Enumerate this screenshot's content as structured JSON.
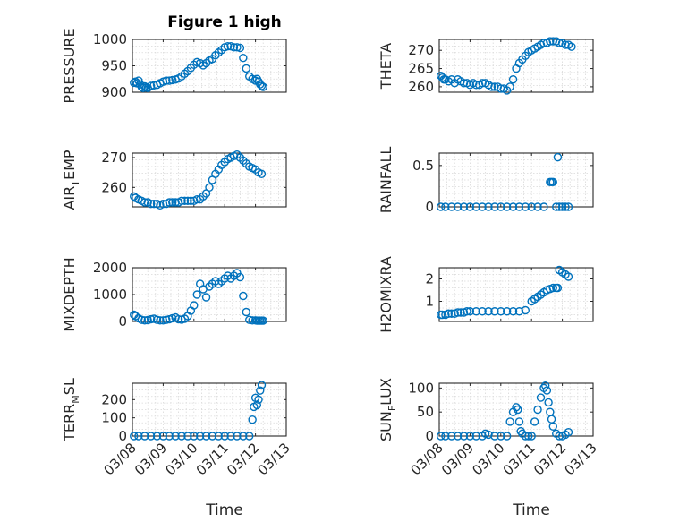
{
  "figure": {
    "title": "Figure 1 high",
    "marker_color": "#0072BD"
  },
  "chart_data": [
    {
      "type": "scatter",
      "title": "Figure 1 high",
      "ylabel": "PRESSURE",
      "ylim": [
        900,
        1000
      ],
      "yticks": [
        900,
        950,
        1000
      ],
      "xlim": [
        0,
        5
      ],
      "xticklabels": [
        "03/08",
        "03/09",
        "03/10",
        "03/11",
        "03/12",
        "03/13"
      ],
      "show_xticklabels": false,
      "grid": true,
      "x": [
        0.05,
        0.1,
        0.15,
        0.2,
        0.25,
        0.3,
        0.35,
        0.4,
        0.45,
        0.5,
        0.6,
        0.7,
        0.8,
        0.9,
        1.0,
        1.1,
        1.2,
        1.3,
        1.4,
        1.5,
        1.6,
        1.7,
        1.8,
        1.9,
        2.0,
        2.1,
        2.2,
        2.3,
        2.4,
        2.5,
        2.6,
        2.7,
        2.8,
        2.9,
        3.0,
        3.1,
        3.2,
        3.3,
        3.4,
        3.5,
        3.6,
        3.7,
        3.8,
        3.9,
        4.0,
        4.05,
        4.1,
        4.15,
        4.2,
        4.25
      ],
      "y": [
        918,
        920,
        917,
        922,
        915,
        910,
        908,
        911,
        909,
        908,
        912,
        913,
        914,
        917,
        920,
        922,
        922,
        923,
        924,
        926,
        930,
        935,
        940,
        946,
        952,
        957,
        955,
        951,
        955,
        960,
        963,
        970,
        975,
        980,
        985,
        987,
        987,
        985,
        985,
        984,
        965,
        945,
        930,
        925,
        922,
        925,
        920,
        915,
        912,
        910
      ]
    },
    {
      "type": "scatter",
      "ylabel": "THETA",
      "ylim": [
        258.5,
        273
      ],
      "yticks": [
        260,
        265,
        270
      ],
      "xlim": [
        0,
        5
      ],
      "xticklabels": [
        "03/08",
        "03/09",
        "03/10",
        "03/11",
        "03/12",
        "03/13"
      ],
      "show_xticklabels": false,
      "grid": true,
      "x": [
        0.05,
        0.1,
        0.15,
        0.2,
        0.3,
        0.4,
        0.5,
        0.6,
        0.7,
        0.8,
        0.9,
        1.0,
        1.1,
        1.2,
        1.3,
        1.4,
        1.5,
        1.6,
        1.7,
        1.8,
        1.9,
        2.0,
        2.1,
        2.2,
        2.3,
        2.4,
        2.5,
        2.6,
        2.7,
        2.8,
        2.9,
        3.0,
        3.1,
        3.2,
        3.3,
        3.4,
        3.5,
        3.6,
        3.7,
        3.8,
        3.9,
        4.0,
        4.1,
        4.2,
        4.3
      ],
      "y": [
        263,
        262.5,
        262,
        262,
        261.5,
        262,
        261,
        262,
        261.5,
        261,
        261,
        260.5,
        261,
        260.5,
        260.5,
        261,
        261,
        260.5,
        260,
        260,
        260,
        259.5,
        259.5,
        259,
        260,
        262,
        265,
        266.5,
        267.5,
        268.5,
        269.5,
        270,
        270.5,
        271,
        271.5,
        272,
        272,
        272.5,
        272.5,
        272.5,
        272,
        272,
        271.5,
        271.5,
        271
      ]
    },
    {
      "type": "scatter",
      "ylabel": "AIR_TEMP",
      "ylim": [
        253.5,
        271.5
      ],
      "yticks": [
        260,
        270
      ],
      "xlim": [
        0,
        5
      ],
      "xticklabels": [
        "03/08",
        "03/09",
        "03/10",
        "03/11",
        "03/12",
        "03/13"
      ],
      "show_xticklabels": false,
      "grid": true,
      "x": [
        0.05,
        0.1,
        0.2,
        0.3,
        0.4,
        0.5,
        0.6,
        0.7,
        0.8,
        0.9,
        1.0,
        1.1,
        1.2,
        1.3,
        1.4,
        1.5,
        1.6,
        1.7,
        1.8,
        1.9,
        2.0,
        2.1,
        2.2,
        2.3,
        2.4,
        2.5,
        2.6,
        2.7,
        2.8,
        2.9,
        3.0,
        3.1,
        3.2,
        3.3,
        3.4,
        3.5,
        3.6,
        3.7,
        3.8,
        3.9,
        4.0,
        4.1,
        4.2
      ],
      "y": [
        257,
        256.5,
        256,
        255.5,
        255,
        255,
        254.5,
        254.5,
        254.5,
        254,
        254.5,
        254.5,
        255,
        255,
        255,
        255,
        255.5,
        255.5,
        255.5,
        255.5,
        255.5,
        256,
        256,
        257,
        258,
        260,
        262.5,
        264.5,
        266,
        267.5,
        268.5,
        269.5,
        270,
        270.5,
        271,
        270,
        269,
        268,
        267,
        266.5,
        266,
        265,
        264.5
      ]
    },
    {
      "type": "scatter",
      "ylabel": "RAINFALL",
      "ylim": [
        0,
        0.65
      ],
      "yticks": [
        0,
        0.5
      ],
      "xlim": [
        0,
        5
      ],
      "xticklabels": [
        "03/08",
        "03/09",
        "03/10",
        "03/11",
        "03/12",
        "03/13"
      ],
      "show_xticklabels": false,
      "grid": true,
      "x": [
        0.05,
        0.2,
        0.4,
        0.6,
        0.8,
        1.0,
        1.2,
        1.4,
        1.6,
        1.8,
        2.0,
        2.2,
        2.4,
        2.6,
        2.8,
        3.0,
        3.2,
        3.4,
        3.6,
        3.65,
        3.7,
        3.8,
        3.85,
        3.9,
        4.0,
        4.1,
        4.2
      ],
      "y": [
        0,
        0,
        0,
        0,
        0,
        0,
        0,
        0,
        0,
        0,
        0,
        0,
        0,
        0,
        0,
        0,
        0,
        0,
        0.3,
        0.3,
        0.3,
        0,
        0.6,
        0,
        0,
        0,
        0
      ]
    },
    {
      "type": "scatter",
      "ylabel": "MIXDEPTH",
      "ylim": [
        0,
        2000
      ],
      "yticks": [
        0,
        1000,
        2000
      ],
      "xlim": [
        0,
        5
      ],
      "xticklabels": [
        "03/08",
        "03/09",
        "03/10",
        "03/11",
        "03/12",
        "03/13"
      ],
      "show_xticklabels": false,
      "grid": true,
      "x": [
        0.05,
        0.1,
        0.2,
        0.3,
        0.4,
        0.5,
        0.6,
        0.7,
        0.8,
        0.9,
        1.0,
        1.1,
        1.2,
        1.3,
        1.4,
        1.5,
        1.6,
        1.7,
        1.8,
        1.9,
        2.0,
        2.1,
        2.2,
        2.3,
        2.4,
        2.5,
        2.6,
        2.7,
        2.8,
        2.9,
        3.0,
        3.1,
        3.2,
        3.3,
        3.4,
        3.5,
        3.6,
        3.7,
        3.8,
        3.9,
        4.0,
        4.05,
        4.1,
        4.15,
        4.2,
        4.25
      ],
      "y": [
        250,
        200,
        120,
        60,
        40,
        50,
        80,
        100,
        60,
        40,
        40,
        60,
        80,
        120,
        150,
        80,
        70,
        100,
        200,
        400,
        600,
        1000,
        1400,
        1200,
        900,
        1300,
        1400,
        1500,
        1400,
        1500,
        1600,
        1700,
        1600,
        1700,
        1800,
        1650,
        950,
        350,
        60,
        40,
        40,
        30,
        30,
        30,
        30,
        30
      ]
    },
    {
      "type": "scatter",
      "ylabel": "H2OMIXRA",
      "ylim": [
        0.1,
        2.5
      ],
      "yticks": [
        1,
        2
      ],
      "xlim": [
        0,
        5
      ],
      "xticklabels": [
        "03/08",
        "03/09",
        "03/10",
        "03/11",
        "03/12",
        "03/13"
      ],
      "show_xticklabels": false,
      "grid": true,
      "x": [
        0.05,
        0.1,
        0.2,
        0.3,
        0.4,
        0.5,
        0.6,
        0.7,
        0.8,
        0.9,
        1.0,
        1.2,
        1.4,
        1.6,
        1.8,
        2.0,
        2.2,
        2.4,
        2.6,
        2.8,
        3.0,
        3.1,
        3.2,
        3.3,
        3.4,
        3.5,
        3.6,
        3.7,
        3.8,
        3.85,
        3.9,
        4.0,
        4.1,
        4.2
      ],
      "y": [
        0.4,
        0.4,
        0.4,
        0.45,
        0.45,
        0.45,
        0.5,
        0.5,
        0.5,
        0.55,
        0.55,
        0.55,
        0.55,
        0.55,
        0.55,
        0.55,
        0.55,
        0.55,
        0.55,
        0.6,
        1.0,
        1.1,
        1.2,
        1.3,
        1.4,
        1.5,
        1.55,
        1.6,
        1.6,
        1.6,
        2.4,
        2.3,
        2.2,
        2.1
      ]
    },
    {
      "type": "scatter",
      "ylabel": "TERR_MSL",
      "ylim": [
        0,
        290
      ],
      "yticks": [
        0,
        100,
        200
      ],
      "xlim": [
        0,
        5
      ],
      "xticklabels": [
        "03/08",
        "03/09",
        "03/10",
        "03/11",
        "03/12",
        "03/13"
      ],
      "show_xticklabels": true,
      "grid": true,
      "x": [
        0.05,
        0.2,
        0.4,
        0.6,
        0.8,
        1.0,
        1.2,
        1.4,
        1.6,
        1.8,
        2.0,
        2.2,
        2.4,
        2.6,
        2.8,
        3.0,
        3.2,
        3.4,
        3.6,
        3.8,
        3.9,
        3.95,
        4.0,
        4.05,
        4.1,
        4.15,
        4.2
      ],
      "y": [
        0,
        0,
        0,
        0,
        0,
        0,
        0,
        0,
        0,
        0,
        0,
        0,
        0,
        0,
        0,
        0,
        0,
        0,
        0,
        0,
        90,
        160,
        210,
        170,
        200,
        250,
        280
      ]
    },
    {
      "type": "scatter",
      "ylabel": "SUN_FLUX",
      "ylim": [
        0,
        110
      ],
      "yticks": [
        0,
        50,
        100
      ],
      "xlim": [
        0,
        5
      ],
      "xticklabels": [
        "03/08",
        "03/09",
        "03/10",
        "03/11",
        "03/12",
        "03/13"
      ],
      "show_xticklabels": true,
      "grid": true,
      "x": [
        0.05,
        0.2,
        0.4,
        0.6,
        0.8,
        1.0,
        1.2,
        1.4,
        1.5,
        1.6,
        1.8,
        2.0,
        2.2,
        2.3,
        2.4,
        2.5,
        2.55,
        2.6,
        2.65,
        2.7,
        2.8,
        2.9,
        3.0,
        3.1,
        3.2,
        3.3,
        3.4,
        3.45,
        3.5,
        3.55,
        3.6,
        3.65,
        3.7,
        3.8,
        3.9,
        4.0,
        4.1,
        4.2
      ],
      "y": [
        0,
        0,
        0,
        0,
        0,
        0,
        0,
        0,
        5,
        3,
        0,
        0,
        0,
        30,
        50,
        60,
        55,
        30,
        10,
        5,
        0,
        0,
        0,
        30,
        55,
        80,
        100,
        105,
        95,
        70,
        50,
        35,
        20,
        5,
        0,
        0,
        3,
        8
      ]
    }
  ],
  "xlabels": [
    "Time",
    "Time"
  ]
}
